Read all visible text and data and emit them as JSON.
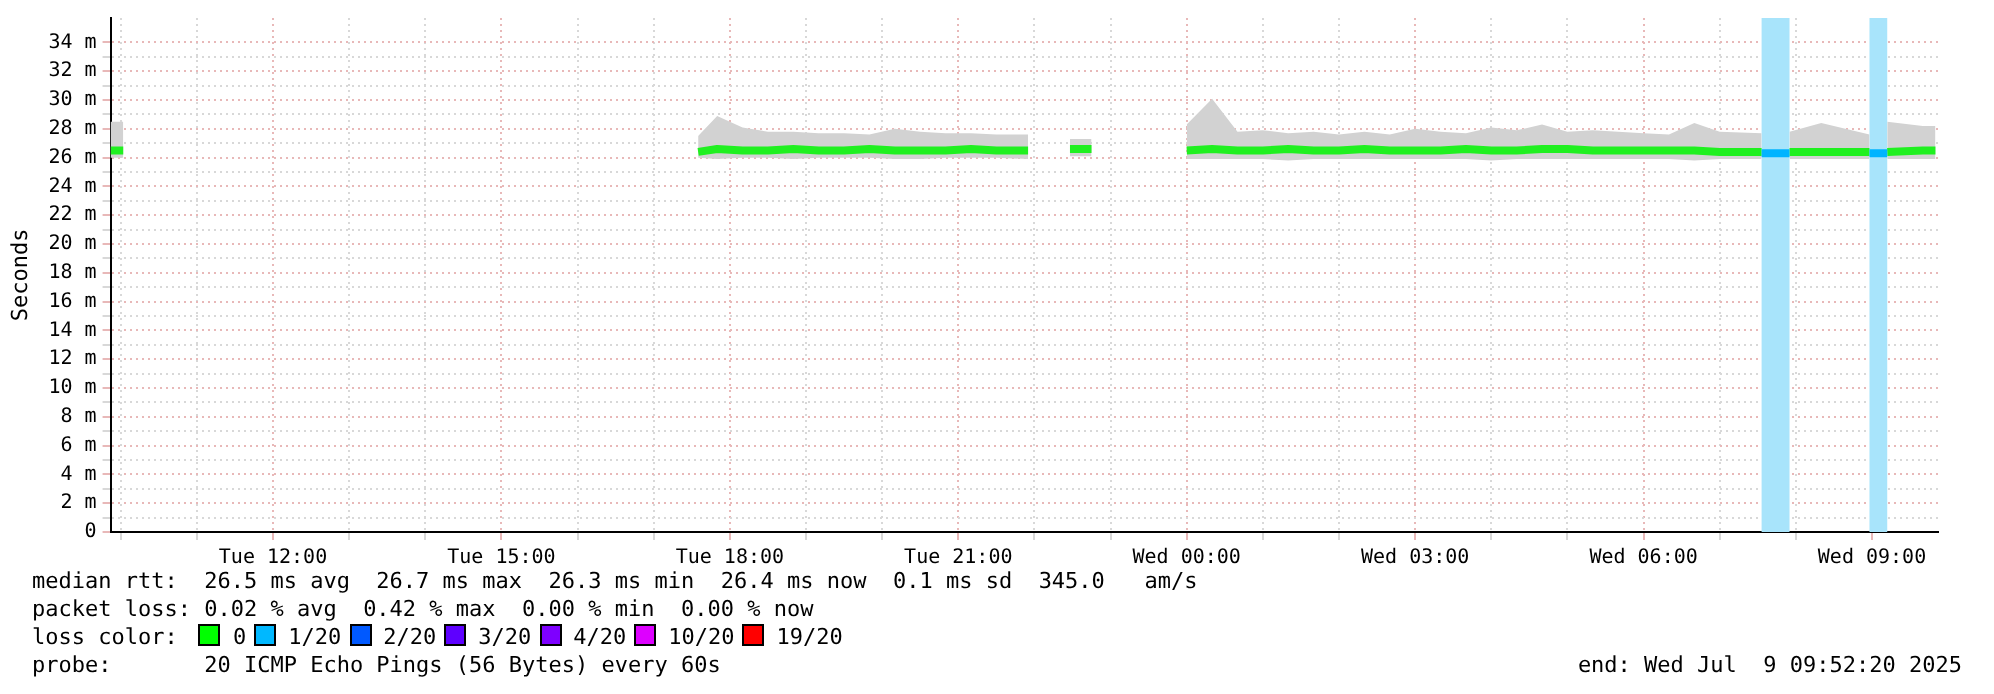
{
  "chart_data": {
    "type": "line",
    "ylabel": "Seconds",
    "legend": false,
    "grid": true,
    "marker": "none",
    "line_style": "solid",
    "xlim": [
      "2025-07-08T09:52",
      "2025-07-09T09:52"
    ],
    "xticks": [
      {
        "value": "2025-07-08T10:00",
        "label": null
      },
      {
        "value": "2025-07-08T11:00",
        "label": null
      },
      {
        "value": "2025-07-08T12:00",
        "label": "Tue 12:00"
      },
      {
        "value": "2025-07-08T13:00",
        "label": null
      },
      {
        "value": "2025-07-08T14:00",
        "label": null
      },
      {
        "value": "2025-07-08T15:00",
        "label": "Tue 15:00"
      },
      {
        "value": "2025-07-08T16:00",
        "label": null
      },
      {
        "value": "2025-07-08T17:00",
        "label": null
      },
      {
        "value": "2025-07-08T18:00",
        "label": "Tue 18:00"
      },
      {
        "value": "2025-07-08T19:00",
        "label": null
      },
      {
        "value": "2025-07-08T20:00",
        "label": null
      },
      {
        "value": "2025-07-08T21:00",
        "label": "Tue 21:00"
      },
      {
        "value": "2025-07-08T22:00",
        "label": null
      },
      {
        "value": "2025-07-08T23:00",
        "label": null
      },
      {
        "value": "2025-07-09T00:00",
        "label": "Wed 00:00"
      },
      {
        "value": "2025-07-09T01:00",
        "label": null
      },
      {
        "value": "2025-07-09T02:00",
        "label": null
      },
      {
        "value": "2025-07-09T03:00",
        "label": "Wed 03:00"
      },
      {
        "value": "2025-07-09T04:00",
        "label": null
      },
      {
        "value": "2025-07-09T05:00",
        "label": null
      },
      {
        "value": "2025-07-09T06:00",
        "label": "Wed 06:00"
      },
      {
        "value": "2025-07-09T07:00",
        "label": null
      },
      {
        "value": "2025-07-09T08:00",
        "label": null
      },
      {
        "value": "2025-07-09T09:00",
        "label": "Wed 09:00"
      }
    ],
    "ylim": [
      0,
      35.7
    ],
    "yticks": [
      0,
      {
        "value": 1,
        "label": null
      },
      {
        "value": 2,
        "label": "2 m"
      },
      {
        "value": 3,
        "label": null
      },
      {
        "value": 4,
        "label": "4 m"
      },
      {
        "value": 5,
        "label": null
      },
      {
        "value": 6,
        "label": "6 m"
      },
      {
        "value": 7,
        "label": null
      },
      {
        "value": 8,
        "label": "8 m"
      },
      {
        "value": 9,
        "label": null
      },
      {
        "value": 10,
        "label": "10 m"
      },
      {
        "value": 11,
        "label": null
      },
      {
        "value": 12,
        "label": "12 m"
      },
      {
        "value": 13,
        "label": null
      },
      {
        "value": 14,
        "label": "14 m"
      },
      {
        "value": 15,
        "label": null
      },
      {
        "value": 16,
        "label": "16 m"
      },
      {
        "value": 17,
        "label": null
      },
      {
        "value": 18,
        "label": "18 m"
      },
      {
        "value": 19,
        "label": null
      },
      {
        "value": 20,
        "label": "20 m"
      },
      {
        "value": 21,
        "label": null
      },
      {
        "value": 22,
        "label": "22 m"
      },
      {
        "value": 23,
        "label": null
      },
      {
        "value": 24,
        "label": "24 m"
      },
      {
        "value": 25,
        "label": null
      },
      {
        "value": 26,
        "label": "26 m"
      },
      {
        "value": 27,
        "label": null
      },
      {
        "value": 28,
        "label": "28 m"
      },
      {
        "value": 29,
        "label": null
      },
      {
        "value": 30,
        "label": "30 m"
      },
      {
        "value": 31,
        "label": null
      },
      {
        "value": 32,
        "label": "32 m"
      },
      {
        "value": 33,
        "label": null
      },
      {
        "value": 34,
        "label": "34 m"
      }
    ],
    "bands": [
      {
        "axis": "x",
        "from": "2025-07-09T07:33",
        "to": "2025-07-09T07:55",
        "color": "#a8e4fb"
      },
      {
        "axis": "x",
        "from": "2025-07-09T08:58",
        "to": "2025-07-09T09:12",
        "color": "#a8e4fb"
      }
    ],
    "series": [
      {
        "color": "#20f020",
        "x": [
          "2025-07-08T09:52",
          "2025-07-08T10:02",
          "2025-07-08T10:10",
          "2025-07-08T17:35",
          "2025-07-08T17:50",
          "2025-07-08T18:10",
          "2025-07-08T18:30",
          "2025-07-08T18:50",
          "2025-07-08T19:10",
          "2025-07-08T19:30",
          "2025-07-08T19:50",
          "2025-07-08T20:10",
          "2025-07-08T20:30",
          "2025-07-08T20:50",
          "2025-07-08T21:10",
          "2025-07-08T21:30",
          "2025-07-08T21:55",
          "2025-07-08T22:10",
          "2025-07-08T22:28",
          "2025-07-08T22:45",
          "2025-07-08T23:00",
          "2025-07-09T00:00",
          "2025-07-09T00:20",
          "2025-07-09T00:40",
          "2025-07-09T01:00",
          "2025-07-09T01:20",
          "2025-07-09T01:40",
          "2025-07-09T02:00",
          "2025-07-09T02:20",
          "2025-07-09T02:40",
          "2025-07-09T03:00",
          "2025-07-09T03:20",
          "2025-07-09T03:40",
          "2025-07-09T04:00",
          "2025-07-09T04:20",
          "2025-07-09T04:40",
          "2025-07-09T05:00",
          "2025-07-09T05:20",
          "2025-07-09T05:40",
          "2025-07-09T06:00",
          "2025-07-09T06:20",
          "2025-07-09T06:40",
          "2025-07-09T07:00",
          "2025-07-09T07:33",
          "2025-07-09T07:44",
          "2025-07-09T07:55",
          "2025-07-09T08:20",
          "2025-07-09T08:58",
          "2025-07-09T09:05",
          "2025-07-09T09:12",
          "2025-07-09T09:40",
          "2025-07-09T09:50"
        ],
        "values": [
          26.5,
          26.5,
          null,
          26.4,
          26.6,
          26.5,
          26.5,
          26.6,
          26.5,
          26.5,
          26.6,
          26.5,
          26.5,
          26.5,
          26.6,
          26.5,
          26.5,
          null,
          26.6,
          26.6,
          null,
          26.5,
          26.6,
          26.5,
          26.5,
          26.6,
          26.5,
          26.5,
          26.6,
          26.5,
          26.5,
          26.5,
          26.6,
          26.5,
          26.5,
          26.6,
          26.6,
          26.5,
          26.5,
          26.5,
          26.5,
          26.5,
          26.4,
          26.4,
          null,
          26.4,
          26.4,
          26.4,
          null,
          26.4,
          26.5,
          26.5
        ],
        "upper": [
          28.5,
          28.5,
          null,
          27.5,
          28.9,
          28.1,
          27.8,
          27.8,
          27.7,
          27.7,
          27.6,
          28,
          27.8,
          27.7,
          27.7,
          27.6,
          27.6,
          null,
          27.3,
          27.3,
          null,
          28.3,
          30.1,
          27.8,
          27.9,
          27.7,
          27.8,
          27.6,
          27.8,
          27.6,
          28,
          27.8,
          27.7,
          28.1,
          27.9,
          28.3,
          27.8,
          27.9,
          27.8,
          27.7,
          27.6,
          28.4,
          27.8,
          27.7,
          null,
          27.8,
          28.4,
          27.6,
          null,
          28.5,
          28.2,
          28.2
        ],
        "lower": [
          26,
          26,
          null,
          26,
          25.9,
          26,
          26,
          25.9,
          26,
          26,
          26,
          25.9,
          25.9,
          26,
          26,
          26,
          25.9,
          null,
          26.1,
          26.1,
          null,
          25.9,
          25.9,
          25.9,
          25.9,
          25.8,
          25.9,
          25.9,
          25.9,
          25.9,
          25.9,
          25.9,
          25.9,
          25.8,
          25.9,
          25.9,
          25.9,
          25.9,
          25.9,
          25.9,
          25.9,
          25.8,
          25.9,
          25.9,
          null,
          25.9,
          25.9,
          25.9,
          null,
          25.9,
          25.9,
          25.9
        ]
      },
      {
        "color": "#00b4ff",
        "x": [
          "2025-07-09T07:33",
          "2025-07-09T07:55",
          "2025-07-09T08:20",
          "2025-07-09T08:58",
          "2025-07-09T09:12"
        ],
        "values": [
          26.3,
          26.3,
          null,
          26.3,
          26.3
        ]
      }
    ],
    "annotations": [
      "median rtt:  26.5 ms avg  26.7 ms max  26.3 ms min  26.4 ms now  0.1 ms sd  345.0   am/s",
      "packet loss: 0.02 % avg  0.42 % max  0.00 % min  0.00 % now",
      "loss color:",
      "0",
      "1/20",
      "2/20",
      "3/20",
      "4/20",
      "10/20",
      "19/20",
      "probe:       20 ICMP Echo Pings (56 Bytes) every 60s",
      "end: Wed Jul  9 09:52:20 2025"
    ]
  }
}
